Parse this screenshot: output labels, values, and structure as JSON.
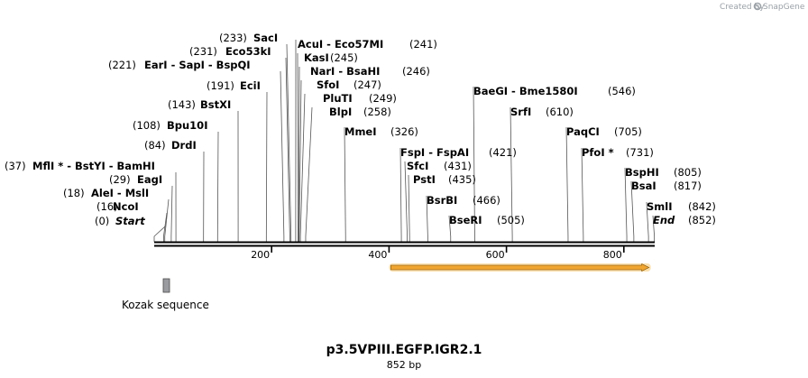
{
  "branding": {
    "created_by": "Created by",
    "product": "SnapGene"
  },
  "sequence": {
    "name": "p3.5VPIII.EGFP.IGR2.1",
    "length_label": "852 bp",
    "length": 852
  },
  "ruler": {
    "ticks": [
      200,
      400,
      600,
      800
    ]
  },
  "features": [
    {
      "name": "Kozak sequence",
      "start": 38,
      "end": 47,
      "color": "#9a9ca0"
    },
    {
      "name": "",
      "start": 400,
      "end": 852,
      "color": "#f0a531"
    }
  ],
  "sites": [
    {
      "id": "start",
      "label": "Start",
      "pos": "(0)",
      "cut": 0,
      "ends": true
    },
    {
      "id": "ncoi",
      "label": "NcoI",
      "pos": "(16)",
      "cut": 16
    },
    {
      "id": "alei",
      "label": "AleI  -  MslI",
      "pos": "(18)",
      "cut": 18
    },
    {
      "id": "eagi",
      "label": "EagI",
      "pos": "(29)",
      "cut": 29
    },
    {
      "id": "mfli",
      "label": "MflI * - BstYI  - BamHI",
      "pos": "(37)",
      "cut": 37
    },
    {
      "id": "drdi",
      "label": "DrdI",
      "pos": "(84)",
      "cut": 84
    },
    {
      "id": "bpu10i",
      "label": "Bpu10I",
      "pos": "(108)",
      "cut": 108
    },
    {
      "id": "bstxi",
      "label": "BstXI",
      "pos": "(143)",
      "cut": 143
    },
    {
      "id": "ecii",
      "label": "EciI",
      "pos": "(191)",
      "cut": 191
    },
    {
      "id": "eari",
      "label": "EarI  - SapI  - BspQI",
      "pos": "(221)",
      "cut": 221
    },
    {
      "id": "eco53ki",
      "label": "Eco53kI",
      "pos": "(231)",
      "cut": 231
    },
    {
      "id": "saci",
      "label": "SacI",
      "pos": "(233)",
      "cut": 233
    },
    {
      "id": "acui",
      "label": "AcuI  - Eco57MI",
      "pos": "(241)",
      "cut": 241
    },
    {
      "id": "kasi",
      "label": "KasI",
      "pos": "(245)",
      "cut": 245
    },
    {
      "id": "nari",
      "label": "NarI  - BsaHI",
      "pos": "(246)",
      "cut": 246
    },
    {
      "id": "sfoi",
      "label": "SfoI",
      "pos": "(247)",
      "cut": 247
    },
    {
      "id": "pluti",
      "label": "PluTI",
      "pos": "(249)",
      "cut": 249
    },
    {
      "id": "blpi",
      "label": "BlpI",
      "pos": "(258)",
      "cut": 258
    },
    {
      "id": "mmei",
      "label": "MmeI",
      "pos": "(326)",
      "cut": 326
    },
    {
      "id": "fspi",
      "label": "FspI  - FspAI",
      "pos": "(421)",
      "cut": 421
    },
    {
      "id": "sfci",
      "label": "SfcI",
      "pos": "(431)",
      "cut": 431
    },
    {
      "id": "psti",
      "label": "PstI",
      "pos": "(435)",
      "cut": 435
    },
    {
      "id": "bsrbi",
      "label": "BsrBI",
      "pos": "(466)",
      "cut": 466
    },
    {
      "id": "bseri",
      "label": "BseRI",
      "pos": "(505)",
      "cut": 505
    },
    {
      "id": "baegi",
      "label": "BaeGI  - Bme1580I",
      "pos": "(546)",
      "cut": 546
    },
    {
      "id": "srfi",
      "label": "SrfI",
      "pos": "(610)",
      "cut": 610
    },
    {
      "id": "paqci",
      "label": "PaqCI",
      "pos": "(705)",
      "cut": 705
    },
    {
      "id": "pfoi",
      "label": "PfoI *",
      "pos": "(731)",
      "cut": 731
    },
    {
      "id": "bsphi",
      "label": "BspHI",
      "pos": "(805)",
      "cut": 805
    },
    {
      "id": "bsai",
      "label": "BsaI",
      "pos": "(817)",
      "cut": 817
    },
    {
      "id": "smli",
      "label": "SmlI",
      "pos": "(842)",
      "cut": 842
    },
    {
      "id": "end",
      "label": "End",
      "pos": "(852)",
      "cut": 852,
      "ends": true
    }
  ]
}
